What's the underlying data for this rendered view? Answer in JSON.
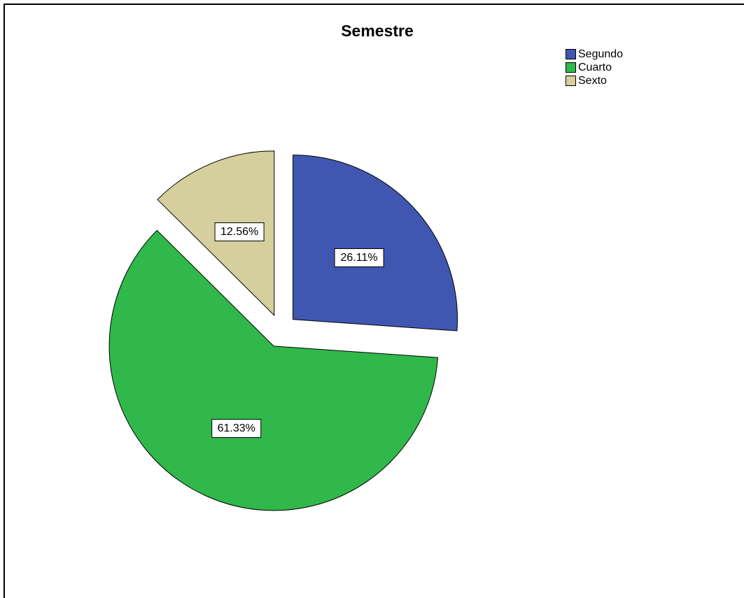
{
  "chart_data": {
    "type": "pie",
    "title": "Semestre",
    "legend_position": "top-right",
    "slices": [
      {
        "label": "Segundo",
        "value": 26.11,
        "value_label": "26.11%",
        "color": "#3f57b0"
      },
      {
        "label": "Cuarto",
        "value": 61.33,
        "value_label": "61.33%",
        "color": "#30b84a"
      },
      {
        "label": "Sexto",
        "value": 12.56,
        "value_label": "12.56%",
        "color": "#d4cf9c"
      }
    ],
    "exploded": true
  }
}
